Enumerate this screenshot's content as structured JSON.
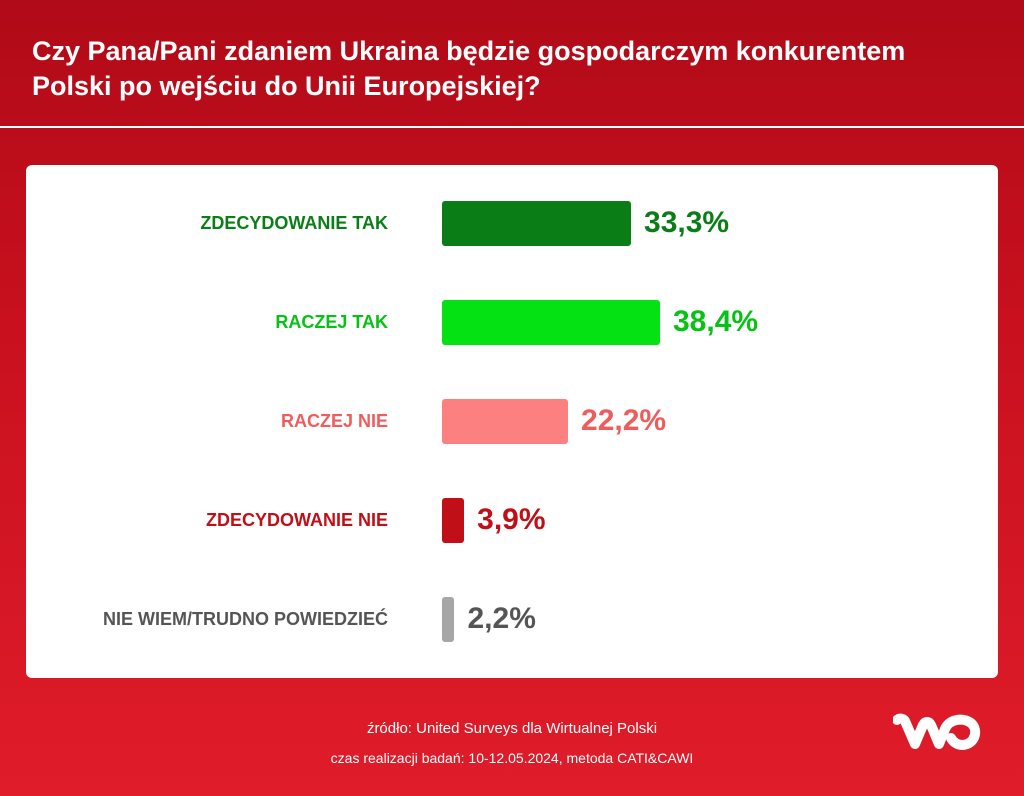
{
  "title": "Czy Pana/Pani zdaniem Ukraina będzie gospodarczym konkurentem Polski po wejściu do Unii Europejskiej?",
  "footer": {
    "source": "źródło: United Surveys dla Wirtualnej Polski",
    "method": "czas realizacji badań: 10-12.05.2024, metoda CATI&CAWI"
  },
  "logo": {
    "icon": "wp-logo",
    "color": "#ffffff"
  },
  "chart_data": {
    "type": "bar",
    "orientation": "horizontal",
    "title": "Czy Pana/Pani zdaniem Ukraina będzie gospodarczym konkurentem Polski po wejściu do Unii Europejskiej?",
    "categories": [
      "ZDECYDOWANIE TAK",
      "RACZEJ TAK",
      "RACZEJ NIE",
      "ZDECYDOWANIE NIE",
      "NIE WIEM/TRUDNO POWIEDZIEĆ"
    ],
    "values": [
      33.3,
      38.4,
      22.2,
      3.9,
      2.2
    ],
    "value_labels": [
      "33,3%",
      "38,4%",
      "22,2%",
      "3,9%",
      "2,2%"
    ],
    "colors": [
      "#0a7d17",
      "#05e214",
      "#fd8080",
      "#c00f17",
      "#a6a6a6"
    ],
    "label_colors": [
      "#0a7d17",
      "#05c214",
      "#f05c5c",
      "#c00f17",
      "#555555"
    ],
    "xlim": [
      0,
      38.4
    ],
    "grid": false,
    "legend": "none",
    "xlabel": "",
    "ylabel": ""
  }
}
